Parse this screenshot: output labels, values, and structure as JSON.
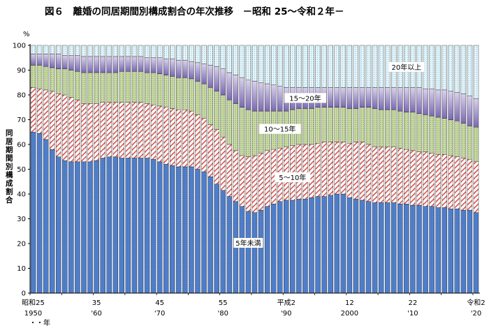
{
  "chart_data": {
    "type": "bar",
    "stacked": true,
    "title": "図６　離婚の同居期間別構成割合の年次推移　－昭和 25～令和２年－",
    "ylabel": "同居期間別構成割合",
    "yunit": "%",
    "ylim": [
      0,
      100
    ],
    "yticks": [
      0,
      10,
      20,
      30,
      40,
      50,
      60,
      70,
      80,
      90,
      100
    ],
    "xtick_labels": [
      {
        "index": 0,
        "line1": "昭和25",
        "line2": "1950"
      },
      {
        "index": 10,
        "line1": "35",
        "line2": "'60"
      },
      {
        "index": 20,
        "line1": "45",
        "line2": "'70"
      },
      {
        "index": 30,
        "line1": "55",
        "line2": "'80"
      },
      {
        "index": 40,
        "line1": "平成2",
        "line2": "'90"
      },
      {
        "index": 50,
        "line1": "12",
        "line2": "2000"
      },
      {
        "index": 60,
        "line1": "22",
        "line2": "'10"
      },
      {
        "index": 70,
        "line1": "令和2",
        "line2": "'20"
      }
    ],
    "x_footnote": "・・年",
    "categories": [
      1950,
      1951,
      1952,
      1953,
      1954,
      1955,
      1956,
      1957,
      1958,
      1959,
      1960,
      1961,
      1962,
      1963,
      1964,
      1965,
      1966,
      1967,
      1968,
      1969,
      1970,
      1971,
      1972,
      1973,
      1974,
      1975,
      1976,
      1977,
      1978,
      1979,
      1980,
      1981,
      1982,
      1983,
      1984,
      1985,
      1986,
      1987,
      1988,
      1989,
      1990,
      1991,
      1992,
      1993,
      1994,
      1995,
      1996,
      1997,
      1998,
      1999,
      2000,
      2001,
      2002,
      2003,
      2004,
      2005,
      2006,
      2007,
      2008,
      2009,
      2010,
      2011,
      2012,
      2013,
      2014,
      2015,
      2016,
      2017,
      2018,
      2019,
      2020
    ],
    "series": [
      {
        "name": "5年未満",
        "color": "#4a7ac8",
        "cumulative_top": [
          65,
          64.5,
          62,
          58,
          55,
          53.5,
          53,
          53,
          53,
          53,
          53.5,
          54.5,
          55,
          55,
          54.5,
          54.5,
          54.5,
          54.5,
          54.5,
          54,
          53,
          52,
          51.5,
          51,
          51,
          51,
          50,
          49,
          47,
          44,
          41.5,
          39,
          37,
          35,
          33,
          32.5,
          33.5,
          35,
          36,
          37,
          37.5,
          37.5,
          38,
          38,
          38.5,
          39,
          39,
          39.5,
          40,
          40,
          38.5,
          38,
          37.5,
          37,
          36.5,
          36.5,
          36.5,
          36.5,
          36,
          36,
          35.5,
          35.5,
          35,
          35,
          34.5,
          34.5,
          34,
          34,
          33.5,
          33.5,
          32.5
        ]
      },
      {
        "name": "5～10年",
        "color": "#d9534f",
        "cumulative_top": [
          83,
          82.5,
          82,
          81.5,
          80.5,
          80,
          79,
          78,
          76.5,
          76.5,
          76.5,
          77,
          77,
          77,
          77,
          77,
          77,
          77,
          76.5,
          76,
          75.5,
          75,
          74.5,
          74,
          74,
          73.5,
          72,
          70.5,
          68,
          66,
          63,
          60,
          57.5,
          55.5,
          55,
          55.5,
          56.5,
          57.5,
          58,
          58.5,
          59,
          59.5,
          60,
          60,
          60,
          60.5,
          61,
          61,
          61,
          61,
          60.5,
          61,
          61,
          60,
          59,
          59,
          59,
          59,
          58.5,
          58,
          57.5,
          57,
          57,
          56.5,
          56,
          56,
          55.5,
          55,
          54.5,
          54,
          53
        ]
      },
      {
        "name": "10～15年",
        "color": "#a9c47f",
        "cumulative_top": [
          92,
          92,
          91.5,
          91,
          90.5,
          90.5,
          90,
          89.5,
          89,
          89,
          89,
          89,
          89,
          89,
          89.5,
          89.5,
          89.5,
          89.5,
          89,
          89,
          88.5,
          88,
          87.5,
          87,
          87,
          86.5,
          85.5,
          84.5,
          83,
          81.5,
          80,
          78,
          76.5,
          75,
          74,
          73.5,
          73.5,
          73.5,
          73.5,
          73.5,
          73.5,
          74,
          74.5,
          74.5,
          74.5,
          75,
          75,
          75,
          75,
          75,
          74.5,
          74.5,
          75,
          75,
          74.5,
          74,
          74,
          74,
          73.5,
          73,
          73,
          72.5,
          72,
          71.5,
          71,
          70.5,
          70,
          69.5,
          68.5,
          67.5,
          67
        ]
      },
      {
        "name": "15～20年",
        "color": "#8f7fbf",
        "cumulative_top": [
          96.5,
          96.5,
          96.5,
          96.5,
          96.5,
          96,
          96,
          96,
          95.5,
          95.5,
          95.5,
          95.5,
          95.5,
          95.5,
          95.5,
          95.5,
          95.5,
          95.5,
          95,
          95,
          95,
          94.5,
          94.5,
          94,
          94,
          93.5,
          93,
          92.5,
          92,
          91.5,
          90.5,
          89,
          88,
          87,
          86,
          85.5,
          85,
          84.5,
          84,
          83.5,
          83,
          83,
          83,
          83,
          83,
          83,
          83,
          83,
          83,
          83,
          83,
          83,
          83,
          83,
          83,
          83,
          83,
          83,
          83,
          83,
          83,
          83,
          82.5,
          82.5,
          82,
          82,
          81.5,
          81,
          80.5,
          79.5,
          78.5
        ]
      },
      {
        "name": "20年以上",
        "color": "#b7dcea",
        "cumulative_top": [
          100,
          100,
          100,
          100,
          100,
          100,
          100,
          100,
          100,
          100,
          100,
          100,
          100,
          100,
          100,
          100,
          100,
          100,
          100,
          100,
          100,
          100,
          100,
          100,
          100,
          100,
          100,
          100,
          100,
          100,
          100,
          100,
          100,
          100,
          100,
          100,
          100,
          100,
          100,
          100,
          100,
          100,
          100,
          100,
          100,
          100,
          100,
          100,
          100,
          100,
          100,
          100,
          100,
          100,
          100,
          100,
          100,
          100,
          100,
          100,
          100,
          100,
          100,
          100,
          100,
          100,
          100,
          100,
          100,
          100,
          100
        ]
      }
    ],
    "segment_labels": [
      {
        "series_index": 0,
        "text": "5年未満",
        "at_index": 34,
        "y_value": 20
      },
      {
        "series_index": 1,
        "text": "5～10年",
        "at_index": 41,
        "y_value": 46.5
      },
      {
        "series_index": 2,
        "text": "10～15年",
        "at_index": 39,
        "y_value": 66
      },
      {
        "series_index": 3,
        "text": "15～20年",
        "at_index": 43,
        "y_value": 78.5
      },
      {
        "series_index": 4,
        "text": "20年以上",
        "at_index": 59,
        "y_value": 91
      }
    ],
    "grid": false,
    "legend": "none"
  }
}
